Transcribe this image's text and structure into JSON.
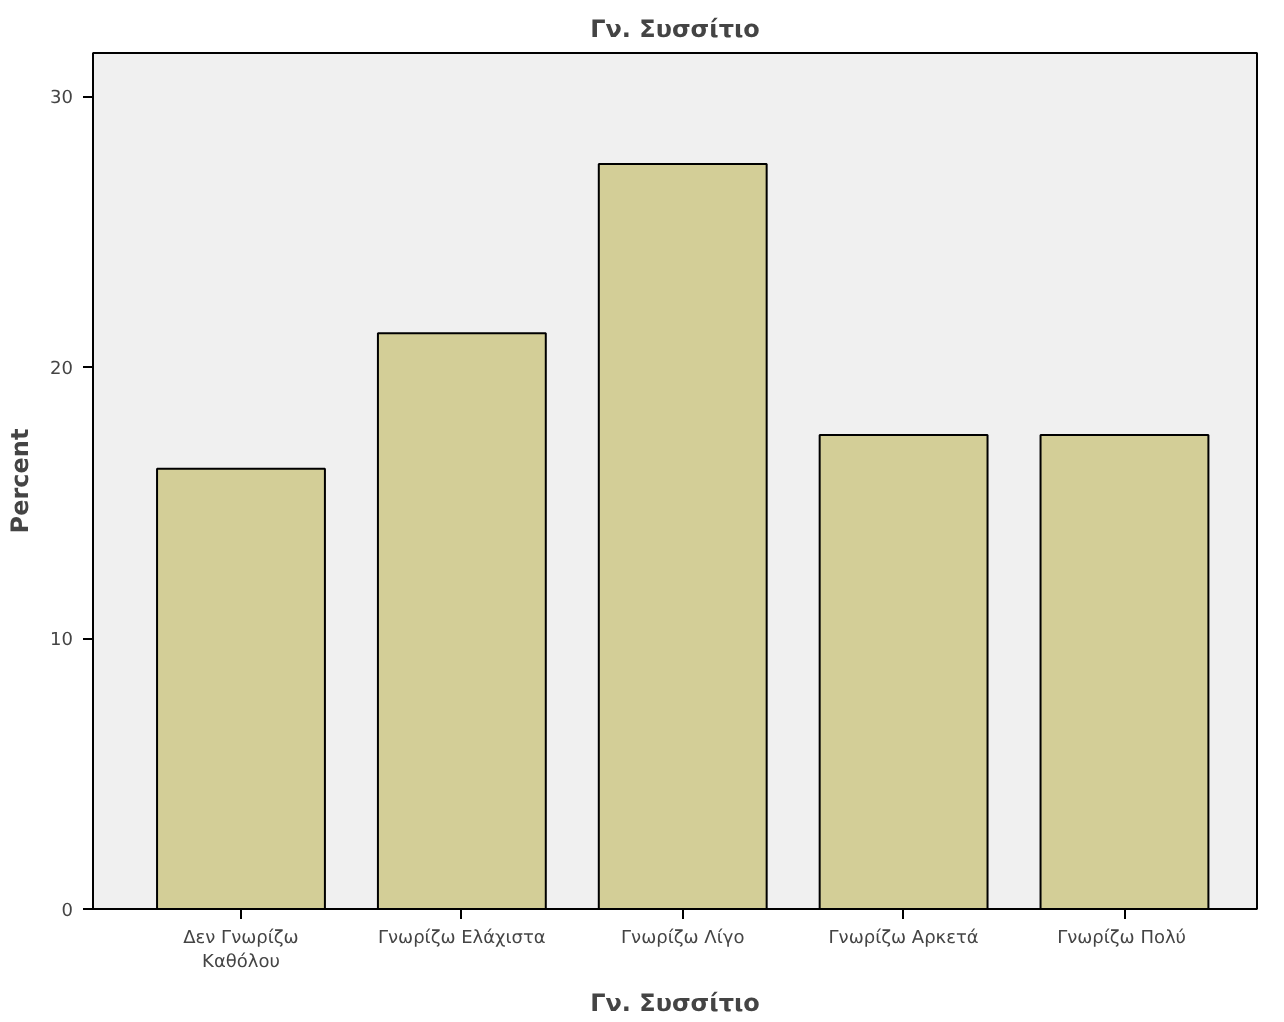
{
  "chart_data": {
    "type": "bar",
    "title": "Γν. Συσσίτιο",
    "xlabel": "Γν. Συσσίτιο",
    "ylabel": "Percent",
    "categories": [
      "Δεν Γνωρίζω\nΚαθόλου",
      "Γνωρίζω Ελάχιστα",
      "Γνωρίζω Λίγο",
      "Γνωρίζω Αρκετά",
      "Γνωρίζω  Πολύ"
    ],
    "values": [
      16.25,
      21.25,
      27.5,
      17.5,
      17.5
    ],
    "color": "#d3ce97",
    "ylim": [
      0,
      31.6
    ],
    "yticks": [
      0,
      10,
      20,
      30
    ],
    "grid": false
  }
}
